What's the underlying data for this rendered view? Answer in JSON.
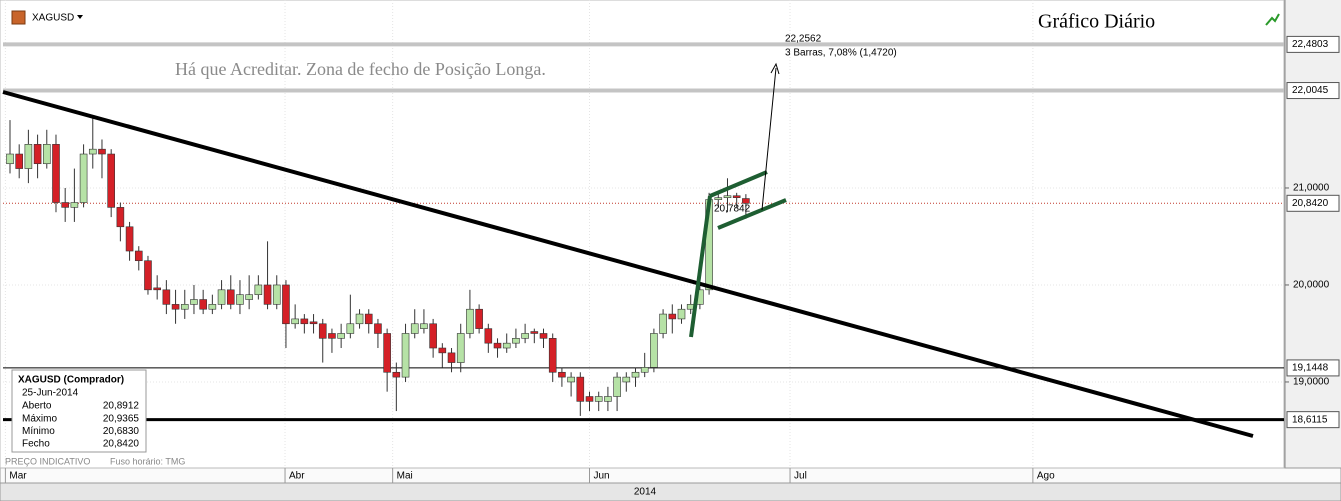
{
  "chart_data": {
    "type": "candlestick",
    "symbol": "XAGUSD",
    "title": "Gráfico Diário",
    "annotation": "Há que Acreditar. Zona de fecho de Posição Longa.",
    "measure": {
      "price": "22,2562",
      "detail": "3 Barras, 7,08% (1,4720)",
      "start": "20,7842"
    },
    "info_box": {
      "title": "XAGUSD (Comprador)",
      "date": "25-Jun-2014",
      "rows": [
        [
          "Aberto",
          "20,8912"
        ],
        [
          "Máximo",
          "20,9365"
        ],
        [
          "Mínimo",
          "20,6830"
        ],
        [
          "Fecho",
          "20,8420"
        ]
      ]
    },
    "footer": [
      "PREÇO INDICATIVO",
      "Fuso horário: TMG"
    ],
    "year": "2014",
    "up_color": "#b6e2a6",
    "down_color": "#d42027",
    "candles": {
      "open": [
        21.25,
        21.35,
        21.2,
        21.45,
        21.25,
        21.45,
        20.85,
        20.8,
        20.85,
        21.35,
        21.4,
        21.35,
        20.8,
        20.6,
        20.35,
        20.25,
        19.97,
        19.95,
        19.8,
        19.75,
        19.8,
        19.85,
        19.75,
        19.8,
        19.95,
        19.8,
        19.85,
        19.9,
        20.0,
        19.8,
        20.0,
        19.6,
        19.65,
        19.62,
        19.6,
        19.5,
        19.45,
        19.5,
        19.6,
        19.7,
        19.6,
        19.5,
        19.1,
        19.05,
        19.5,
        19.55,
        19.6,
        19.35,
        19.3,
        19.2,
        19.5,
        19.75,
        19.55,
        19.4,
        19.35,
        19.4,
        19.45,
        19.52,
        19.5,
        19.45,
        19.1,
        19.0,
        19.05,
        18.85,
        18.8,
        18.8,
        18.85,
        19.0,
        19.05,
        19.1,
        19.15,
        19.5,
        19.7,
        19.65,
        19.75,
        19.8,
        19.95,
        20.88,
        20.9,
        20.92,
        20.8912
      ],
      "high": [
        21.7,
        21.45,
        21.6,
        21.55,
        21.6,
        21.55,
        21.0,
        21.2,
        21.45,
        21.75,
        21.5,
        21.4,
        20.85,
        20.65,
        20.4,
        20.3,
        20.1,
        20.05,
        19.95,
        19.95,
        20.0,
        19.95,
        19.9,
        20.05,
        20.1,
        20.05,
        20.1,
        20.1,
        20.45,
        20.1,
        20.05,
        19.8,
        19.7,
        19.7,
        19.65,
        19.55,
        19.6,
        19.9,
        19.75,
        19.75,
        19.65,
        19.55,
        19.2,
        19.6,
        19.75,
        19.75,
        19.65,
        19.4,
        19.35,
        19.6,
        19.95,
        19.8,
        19.6,
        19.45,
        19.5,
        19.55,
        19.6,
        19.55,
        19.55,
        19.5,
        19.15,
        19.1,
        19.1,
        18.9,
        18.9,
        18.95,
        19.1,
        19.1,
        19.15,
        19.3,
        19.55,
        19.75,
        19.8,
        19.8,
        19.9,
        20.05,
        20.95,
        20.95,
        21.1,
        20.95,
        20.9365
      ],
      "low": [
        21.15,
        21.1,
        21.05,
        21.1,
        21.2,
        20.75,
        20.65,
        20.65,
        20.8,
        21.2,
        21.1,
        20.7,
        20.45,
        20.25,
        20.15,
        19.9,
        19.85,
        19.7,
        19.6,
        19.65,
        19.7,
        19.7,
        19.7,
        19.75,
        19.75,
        19.7,
        19.75,
        19.85,
        19.75,
        19.75,
        19.35,
        19.55,
        19.5,
        19.5,
        19.2,
        19.3,
        19.35,
        19.45,
        19.55,
        19.5,
        19.35,
        18.9,
        18.7,
        19.0,
        19.45,
        19.5,
        19.25,
        19.15,
        19.1,
        19.1,
        19.45,
        19.5,
        19.3,
        19.25,
        19.3,
        19.35,
        19.4,
        19.4,
        19.35,
        19.0,
        18.95,
        18.85,
        18.65,
        18.7,
        18.7,
        18.7,
        18.7,
        18.9,
        18.95,
        19.05,
        19.1,
        19.45,
        19.5,
        19.6,
        19.7,
        19.75,
        19.9,
        20.8,
        20.75,
        20.8,
        20.683
      ],
      "close": [
        21.35,
        21.2,
        21.45,
        21.25,
        21.45,
        20.85,
        20.8,
        20.85,
        21.35,
        21.4,
        21.35,
        20.8,
        20.6,
        20.35,
        20.25,
        19.95,
        19.95,
        19.8,
        19.75,
        19.8,
        19.85,
        19.75,
        19.8,
        19.95,
        19.8,
        19.9,
        19.9,
        20.0,
        19.8,
        20.0,
        19.6,
        19.65,
        19.6,
        19.6,
        19.45,
        19.45,
        19.5,
        19.6,
        19.7,
        19.6,
        19.5,
        19.1,
        19.05,
        19.5,
        19.6,
        19.6,
        19.35,
        19.3,
        19.2,
        19.5,
        19.75,
        19.55,
        19.4,
        19.35,
        19.4,
        19.45,
        19.5,
        19.5,
        19.45,
        19.1,
        19.05,
        19.05,
        18.8,
        18.8,
        18.85,
        18.85,
        19.05,
        19.05,
        19.1,
        19.15,
        19.5,
        19.7,
        19.65,
        19.75,
        19.8,
        19.95,
        20.88,
        20.9,
        20.92,
        20.9,
        20.842
      ]
    },
    "xlim": [
      -0.76,
      138.5
    ],
    "xticks": [
      {
        "value": -0.5,
        "label": "Mar"
      },
      {
        "value": 29.9,
        "label": "Abr"
      },
      {
        "value": 41.6,
        "label": "Mai"
      },
      {
        "value": 63,
        "label": "Jun"
      },
      {
        "value": 84.8,
        "label": "Jul"
      },
      {
        "value": 111.2,
        "label": "Ago"
      }
    ],
    "ylim": [
      18.113,
      22.938
    ],
    "yticks": [
      {
        "value": 19,
        "label": "19,0000"
      },
      {
        "value": 20,
        "label": "20,0000"
      },
      {
        "value": 21,
        "label": "21,0000"
      }
    ],
    "levels": [
      {
        "value": 22.4803,
        "label": "22,4803",
        "color": "#c4c4c4",
        "line": "thick"
      },
      {
        "value": 22.0045,
        "label": "22,0045",
        "color": "#c4c4c4",
        "line": "thick"
      },
      {
        "value": 20.842,
        "label": "20,8420",
        "color": "#c0392b",
        "line": "dotted"
      },
      {
        "value": 19.1448,
        "label": "19,1448",
        "color": "#000000",
        "line": "thin"
      },
      {
        "value": 18.6115,
        "label": "18,6115",
        "color": "#000000",
        "line": "thick"
      }
    ]
  }
}
